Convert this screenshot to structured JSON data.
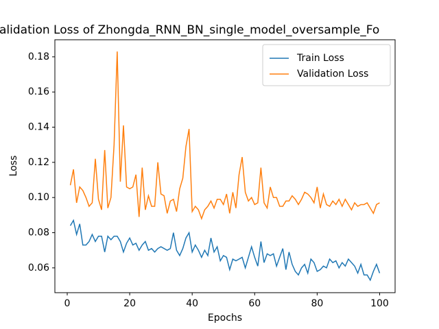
{
  "chart_data": {
    "type": "line",
    "title": "alidation Loss of Zhongda_RNN_BN_single_model_oversample_Fo",
    "x_label": "Epochs",
    "y_label": "Loss",
    "x": [
      1,
      2,
      3,
      4,
      5,
      6,
      7,
      8,
      9,
      10,
      11,
      12,
      13,
      14,
      15,
      16,
      17,
      18,
      19,
      20,
      21,
      22,
      23,
      24,
      25,
      26,
      27,
      28,
      29,
      30,
      31,
      32,
      33,
      34,
      35,
      36,
      37,
      38,
      39,
      40,
      41,
      42,
      43,
      44,
      45,
      46,
      47,
      48,
      49,
      50,
      51,
      52,
      53,
      54,
      55,
      56,
      57,
      58,
      59,
      60,
      61,
      62,
      63,
      64,
      65,
      66,
      67,
      68,
      69,
      70,
      71,
      72,
      73,
      74,
      75,
      76,
      77,
      78,
      79,
      80,
      81,
      82,
      83,
      84,
      85,
      86,
      87,
      88,
      89,
      90,
      91,
      92,
      93,
      94,
      95,
      96,
      97,
      98,
      99,
      100
    ],
    "series": [
      {
        "name": "Train Loss",
        "color": "#1f77b4",
        "values": [
          0.084,
          0.087,
          0.079,
          0.085,
          0.073,
          0.073,
          0.075,
          0.079,
          0.075,
          0.078,
          0.078,
          0.069,
          0.078,
          0.076,
          0.078,
          0.078,
          0.075,
          0.069,
          0.074,
          0.077,
          0.073,
          0.074,
          0.07,
          0.073,
          0.075,
          0.07,
          0.071,
          0.069,
          0.071,
          0.072,
          0.071,
          0.07,
          0.071,
          0.08,
          0.07,
          0.067,
          0.071,
          0.077,
          0.08,
          0.069,
          0.073,
          0.07,
          0.066,
          0.07,
          0.067,
          0.077,
          0.069,
          0.072,
          0.064,
          0.067,
          0.066,
          0.059,
          0.065,
          0.064,
          0.065,
          0.066,
          0.06,
          0.066,
          0.072,
          0.066,
          0.061,
          0.075,
          0.063,
          0.068,
          0.067,
          0.068,
          0.061,
          0.066,
          0.071,
          0.059,
          0.069,
          0.062,
          0.058,
          0.056,
          0.06,
          0.062,
          0.057,
          0.065,
          0.063,
          0.058,
          0.059,
          0.061,
          0.06,
          0.065,
          0.063,
          0.064,
          0.06,
          0.063,
          0.061,
          0.065,
          0.063,
          0.061,
          0.057,
          0.062,
          0.056,
          0.056,
          0.053,
          0.058,
          0.062,
          0.057
        ]
      },
      {
        "name": "Validation Loss",
        "color": "#ff7f0e",
        "values": [
          0.107,
          0.116,
          0.097,
          0.106,
          0.104,
          0.1,
          0.095,
          0.097,
          0.122,
          0.099,
          0.093,
          0.127,
          0.094,
          0.1,
          0.13,
          0.183,
          0.109,
          0.141,
          0.106,
          0.105,
          0.106,
          0.113,
          0.089,
          0.117,
          0.093,
          0.101,
          0.095,
          0.095,
          0.12,
          0.102,
          0.101,
          0.091,
          0.098,
          0.099,
          0.092,
          0.105,
          0.111,
          0.129,
          0.139,
          0.092,
          0.095,
          0.093,
          0.088,
          0.093,
          0.095,
          0.098,
          0.094,
          0.099,
          0.099,
          0.096,
          0.102,
          0.091,
          0.103,
          0.094,
          0.113,
          0.123,
          0.103,
          0.098,
          0.1,
          0.096,
          0.097,
          0.117,
          0.097,
          0.094,
          0.106,
          0.1,
          0.1,
          0.095,
          0.095,
          0.098,
          0.098,
          0.101,
          0.099,
          0.096,
          0.099,
          0.103,
          0.102,
          0.1,
          0.097,
          0.106,
          0.094,
          0.102,
          0.096,
          0.095,
          0.098,
          0.096,
          0.099,
          0.095,
          0.099,
          0.096,
          0.093,
          0.097,
          0.095,
          0.096,
          0.096,
          0.097,
          0.094,
          0.091,
          0.096,
          0.097
        ]
      }
    ],
    "xlim": [
      -3.95,
      104.95
    ],
    "xticks": [
      0,
      20,
      40,
      60,
      80,
      100
    ],
    "ylim": [
      0.0459,
      0.1897
    ],
    "yticks": [
      0.06,
      0.08,
      {
        "value": 0.1,
        "label": "0.10"
      },
      0.12,
      0.14,
      0.16,
      0.18
    ],
    "legend": "upper right",
    "grid": false
  }
}
